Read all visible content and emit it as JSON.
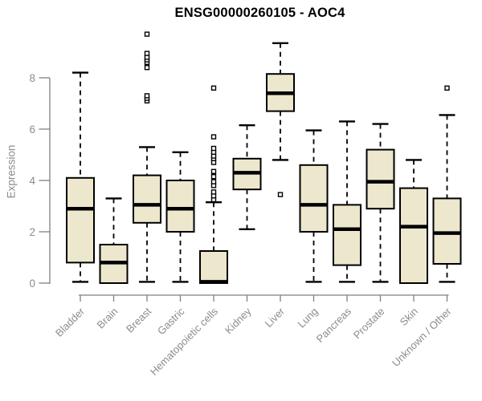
{
  "chart_data": {
    "type": "boxplot",
    "title": "ENSG00000260105 - AOC4",
    "ylabel": "Expression",
    "xlabel": "",
    "ylim": [
      0,
      8
    ],
    "yticks": [
      "0",
      "2",
      "4",
      "6",
      "8"
    ],
    "grid": false,
    "legend": "none",
    "categories": [
      "Bladder",
      "Brain",
      "Breast",
      "Gastric",
      "Hematopoietic cells",
      "Kidney",
      "Liver",
      "Lung",
      "Pancreas",
      "Prostate",
      "Skin",
      "Unknown / Other"
    ],
    "series": [
      {
        "name": "Bladder",
        "whisker_low": 0.05,
        "q1": 0.8,
        "median": 2.9,
        "q3": 4.1,
        "whisker_high": 8.2,
        "outliers": []
      },
      {
        "name": "Brain",
        "whisker_low": 0.0,
        "q1": 0.0,
        "median": 0.8,
        "q3": 1.5,
        "whisker_high": 3.3,
        "outliers": []
      },
      {
        "name": "Breast",
        "whisker_low": 0.05,
        "q1": 2.35,
        "median": 3.05,
        "q3": 4.2,
        "whisker_high": 5.3,
        "outliers": [
          7.1,
          7.2,
          7.3,
          8.4,
          8.6,
          8.7,
          8.8,
          8.95,
          9.7
        ]
      },
      {
        "name": "Gastric",
        "whisker_low": 0.05,
        "q1": 2.0,
        "median": 2.9,
        "q3": 4.0,
        "whisker_high": 5.1,
        "outliers": []
      },
      {
        "name": "Hematopoietic cells",
        "whisker_low": 0.0,
        "q1": 0.0,
        "median": 0.05,
        "q3": 1.25,
        "whisker_high": 3.15,
        "outliers": [
          3.25,
          3.4,
          3.55,
          3.8,
          3.95,
          4.15,
          4.35,
          4.7,
          4.85,
          4.95,
          5.1,
          5.25,
          5.7,
          7.6
        ]
      },
      {
        "name": "Kidney",
        "whisker_low": 2.1,
        "q1": 3.65,
        "median": 4.3,
        "q3": 4.85,
        "whisker_high": 6.15,
        "outliers": []
      },
      {
        "name": "Liver",
        "whisker_low": 4.8,
        "q1": 6.7,
        "median": 7.4,
        "q3": 8.15,
        "whisker_high": 9.35,
        "outliers": [
          3.45
        ]
      },
      {
        "name": "Lung",
        "whisker_low": 0.05,
        "q1": 2.0,
        "median": 3.05,
        "q3": 4.6,
        "whisker_high": 5.95,
        "outliers": []
      },
      {
        "name": "Pancreas",
        "whisker_low": 0.05,
        "q1": 0.7,
        "median": 2.1,
        "q3": 3.05,
        "whisker_high": 6.3,
        "outliers": []
      },
      {
        "name": "Prostate",
        "whisker_low": 0.05,
        "q1": 2.9,
        "median": 3.95,
        "q3": 5.2,
        "whisker_high": 6.2,
        "outliers": []
      },
      {
        "name": "Skin",
        "whisker_low": 0.0,
        "q1": 0.0,
        "median": 2.2,
        "q3": 3.7,
        "whisker_high": 4.8,
        "outliers": []
      },
      {
        "name": "Unknown / Other",
        "whisker_low": 0.05,
        "q1": 0.75,
        "median": 1.95,
        "q3": 3.3,
        "whisker_high": 6.55,
        "outliers": [
          7.6
        ]
      }
    ]
  },
  "style": {
    "box_fill": "#ECE7CD",
    "box_border": "#000000",
    "median_color": "#000000",
    "whisker_color": "#000000",
    "outlier_fill": "#FFFFFF",
    "axis_color": "#7F7F7F",
    "tick_label_color": "#8C8C8C",
    "title_color": "#000000",
    "background": "#FFFFFF"
  }
}
